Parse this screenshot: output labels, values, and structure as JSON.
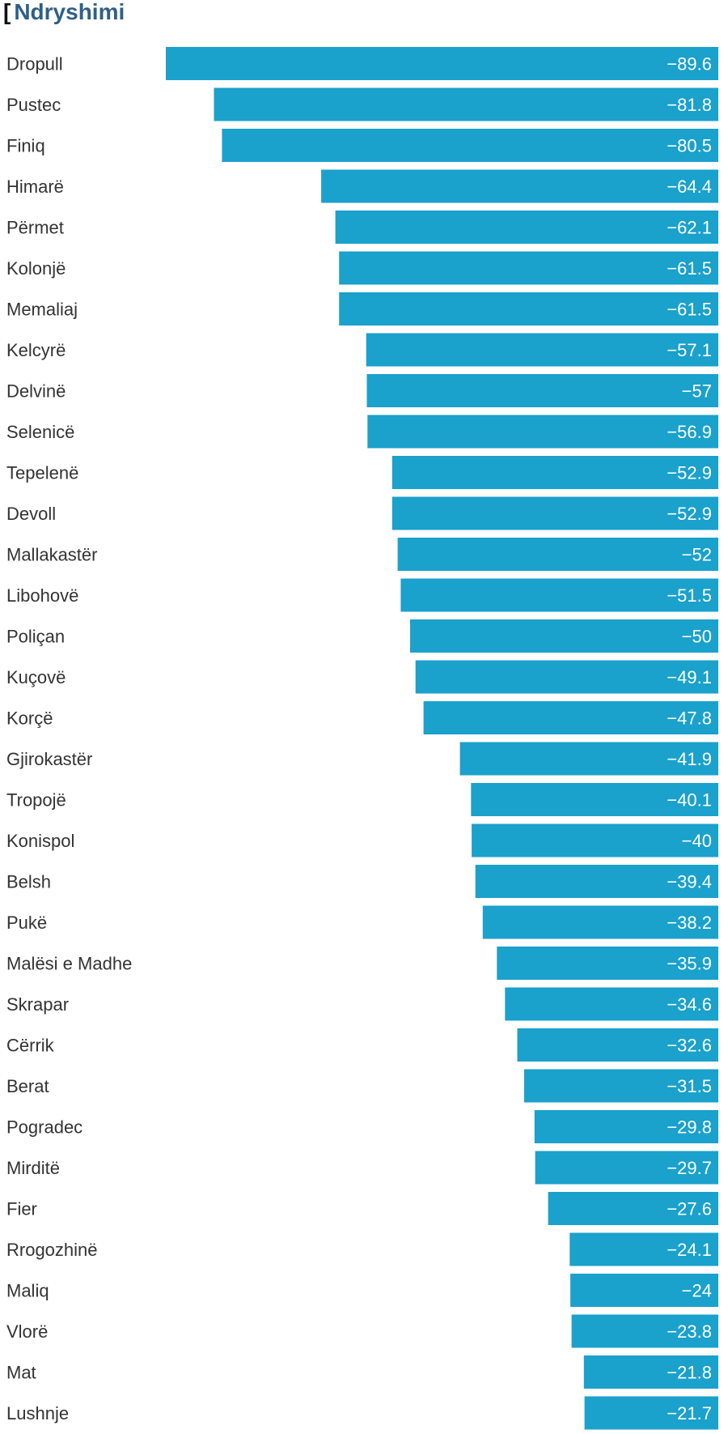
{
  "chart_data": {
    "type": "bar",
    "orientation": "horizontal",
    "title": "Ndryshimi",
    "bar_color": "#1aa1cc",
    "xlim": [
      -89.6,
      0
    ],
    "categories": [
      "Dropull",
      "Pustec",
      "Finiq",
      "Himarë",
      "Përmet",
      "Kolonjë",
      "Memaliaj",
      "Kelcyrë",
      "Delvinë",
      "Selenicë",
      "Tepelenë",
      "Devoll",
      "Mallakastër",
      "Libohovë",
      "Poliçan",
      "Kuçovë",
      "Korçë",
      "Gjirokastër",
      "Tropojë",
      "Konispol",
      "Belsh",
      "Pukë",
      "Malësi e Madhe",
      "Skrapar",
      "Cërrik",
      "Berat",
      "Pogradec",
      "Mirditë",
      "Fier",
      "Rrogozhinë",
      "Maliq",
      "Vlorë",
      "Mat",
      "Lushnje"
    ],
    "values": [
      -89.6,
      -81.8,
      -80.5,
      -64.4,
      -62.1,
      -61.5,
      -61.5,
      -57.1,
      -57,
      -56.9,
      -52.9,
      -52.9,
      -52,
      -51.5,
      -50,
      -49.1,
      -47.8,
      -41.9,
      -40.1,
      -40,
      -39.4,
      -38.2,
      -35.9,
      -34.6,
      -32.6,
      -31.5,
      -29.8,
      -29.7,
      -27.6,
      -24.1,
      -24,
      -23.8,
      -21.8,
      -21.7
    ],
    "value_labels": [
      "−89.6",
      "−81.8",
      "−80.5",
      "−64.4",
      "−62.1",
      "−61.5",
      "−61.5",
      "−57.1",
      "−57",
      "−56.9",
      "−52.9",
      "−52.9",
      "−52",
      "−51.5",
      "−50",
      "−49.1",
      "−47.8",
      "−41.9",
      "−40.1",
      "−40",
      "−39.4",
      "−38.2",
      "−35.9",
      "−34.6",
      "−32.6",
      "−31.5",
      "−29.8",
      "−29.7",
      "−27.6",
      "−24.1",
      "−24",
      "−23.8",
      "−21.8",
      "−21.7"
    ]
  }
}
